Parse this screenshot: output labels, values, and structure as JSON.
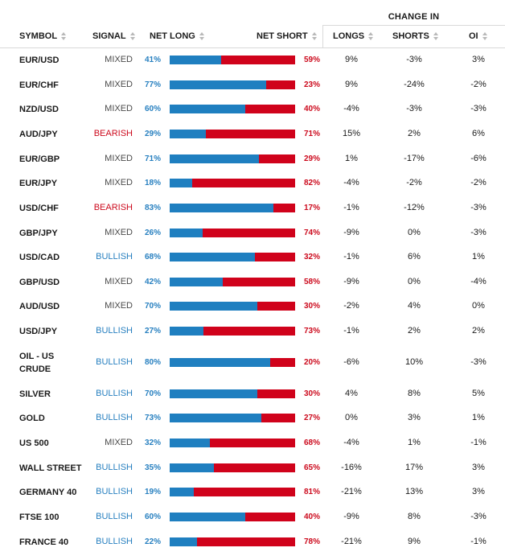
{
  "header": {
    "change_in": "CHANGE IN",
    "symbol": "SYMBOL",
    "signal": "SIGNAL",
    "net_long": "NET LONG",
    "net_short": "NET SHORT",
    "longs": "LONGS",
    "shorts": "SHORTS",
    "oi": "OI"
  },
  "colors": {
    "net_long": "#1f7fc0",
    "net_short": "#d0021b",
    "bullish": "#2880c0",
    "bearish": "#cc0a1d",
    "mixed": "#4a4a4a"
  },
  "rows": [
    {
      "symbol": "EUR/USD",
      "signal": "MIXED",
      "net_long": "41%",
      "long_pct": 41,
      "net_short": "59%",
      "longs": "9%",
      "shorts": "-3%",
      "oi": "3%"
    },
    {
      "symbol": "EUR/CHF",
      "signal": "MIXED",
      "net_long": "77%",
      "long_pct": 77,
      "net_short": "23%",
      "longs": "9%",
      "shorts": "-24%",
      "oi": "-2%"
    },
    {
      "symbol": "NZD/USD",
      "signal": "MIXED",
      "net_long": "60%",
      "long_pct": 60,
      "net_short": "40%",
      "longs": "-4%",
      "shorts": "-3%",
      "oi": "-3%"
    },
    {
      "symbol": "AUD/JPY",
      "signal": "BEARISH",
      "net_long": "29%",
      "long_pct": 29,
      "net_short": "71%",
      "longs": "15%",
      "shorts": "2%",
      "oi": "6%"
    },
    {
      "symbol": "EUR/GBP",
      "signal": "MIXED",
      "net_long": "71%",
      "long_pct": 71,
      "net_short": "29%",
      "longs": "1%",
      "shorts": "-17%",
      "oi": "-6%"
    },
    {
      "symbol": "EUR/JPY",
      "signal": "MIXED",
      "net_long": "18%",
      "long_pct": 18,
      "net_short": "82%",
      "longs": "-4%",
      "shorts": "-2%",
      "oi": "-2%"
    },
    {
      "symbol": "USD/CHF",
      "signal": "BEARISH",
      "net_long": "83%",
      "long_pct": 83,
      "net_short": "17%",
      "longs": "-1%",
      "shorts": "-12%",
      "oi": "-3%"
    },
    {
      "symbol": "GBP/JPY",
      "signal": "MIXED",
      "net_long": "26%",
      "long_pct": 26,
      "net_short": "74%",
      "longs": "-9%",
      "shorts": "0%",
      "oi": "-3%"
    },
    {
      "symbol": "USD/CAD",
      "signal": "BULLISH",
      "net_long": "68%",
      "long_pct": 68,
      "net_short": "32%",
      "longs": "-1%",
      "shorts": "6%",
      "oi": "1%"
    },
    {
      "symbol": "GBP/USD",
      "signal": "MIXED",
      "net_long": "42%",
      "long_pct": 42,
      "net_short": "58%",
      "longs": "-9%",
      "shorts": "0%",
      "oi": "-4%"
    },
    {
      "symbol": "AUD/USD",
      "signal": "MIXED",
      "net_long": "70%",
      "long_pct": 70,
      "net_short": "30%",
      "longs": "-2%",
      "shorts": "4%",
      "oi": "0%"
    },
    {
      "symbol": "USD/JPY",
      "signal": "BULLISH",
      "net_long": "27%",
      "long_pct": 27,
      "net_short": "73%",
      "longs": "-1%",
      "shorts": "2%",
      "oi": "2%"
    },
    {
      "symbol": "OIL - US CRUDE",
      "symbol_line1": "OIL - US",
      "symbol_line2": "CRUDE",
      "signal": "BULLISH",
      "net_long": "80%",
      "long_pct": 80,
      "net_short": "20%",
      "longs": "-6%",
      "shorts": "10%",
      "oi": "-3%"
    },
    {
      "symbol": "SILVER",
      "signal": "BULLISH",
      "net_long": "70%",
      "long_pct": 70,
      "net_short": "30%",
      "longs": "4%",
      "shorts": "8%",
      "oi": "5%"
    },
    {
      "symbol": "GOLD",
      "signal": "BULLISH",
      "net_long": "73%",
      "long_pct": 73,
      "net_short": "27%",
      "longs": "0%",
      "shorts": "3%",
      "oi": "1%"
    },
    {
      "symbol": "US 500",
      "signal": "MIXED",
      "net_long": "32%",
      "long_pct": 32,
      "net_short": "68%",
      "longs": "-4%",
      "shorts": "1%",
      "oi": "-1%"
    },
    {
      "symbol": "WALL STREET",
      "signal": "BULLISH",
      "net_long": "35%",
      "long_pct": 35,
      "net_short": "65%",
      "longs": "-16%",
      "shorts": "17%",
      "oi": "3%"
    },
    {
      "symbol": "GERMANY 40",
      "signal": "BULLISH",
      "net_long": "19%",
      "long_pct": 19,
      "net_short": "81%",
      "longs": "-21%",
      "shorts": "13%",
      "oi": "3%"
    },
    {
      "symbol": "FTSE 100",
      "signal": "BULLISH",
      "net_long": "60%",
      "long_pct": 60,
      "net_short": "40%",
      "longs": "-9%",
      "shorts": "8%",
      "oi": "-3%"
    },
    {
      "symbol": "FRANCE 40",
      "signal": "BULLISH",
      "net_long": "22%",
      "long_pct": 22,
      "net_short": "78%",
      "longs": "-21%",
      "shorts": "9%",
      "oi": "-1%"
    }
  ]
}
